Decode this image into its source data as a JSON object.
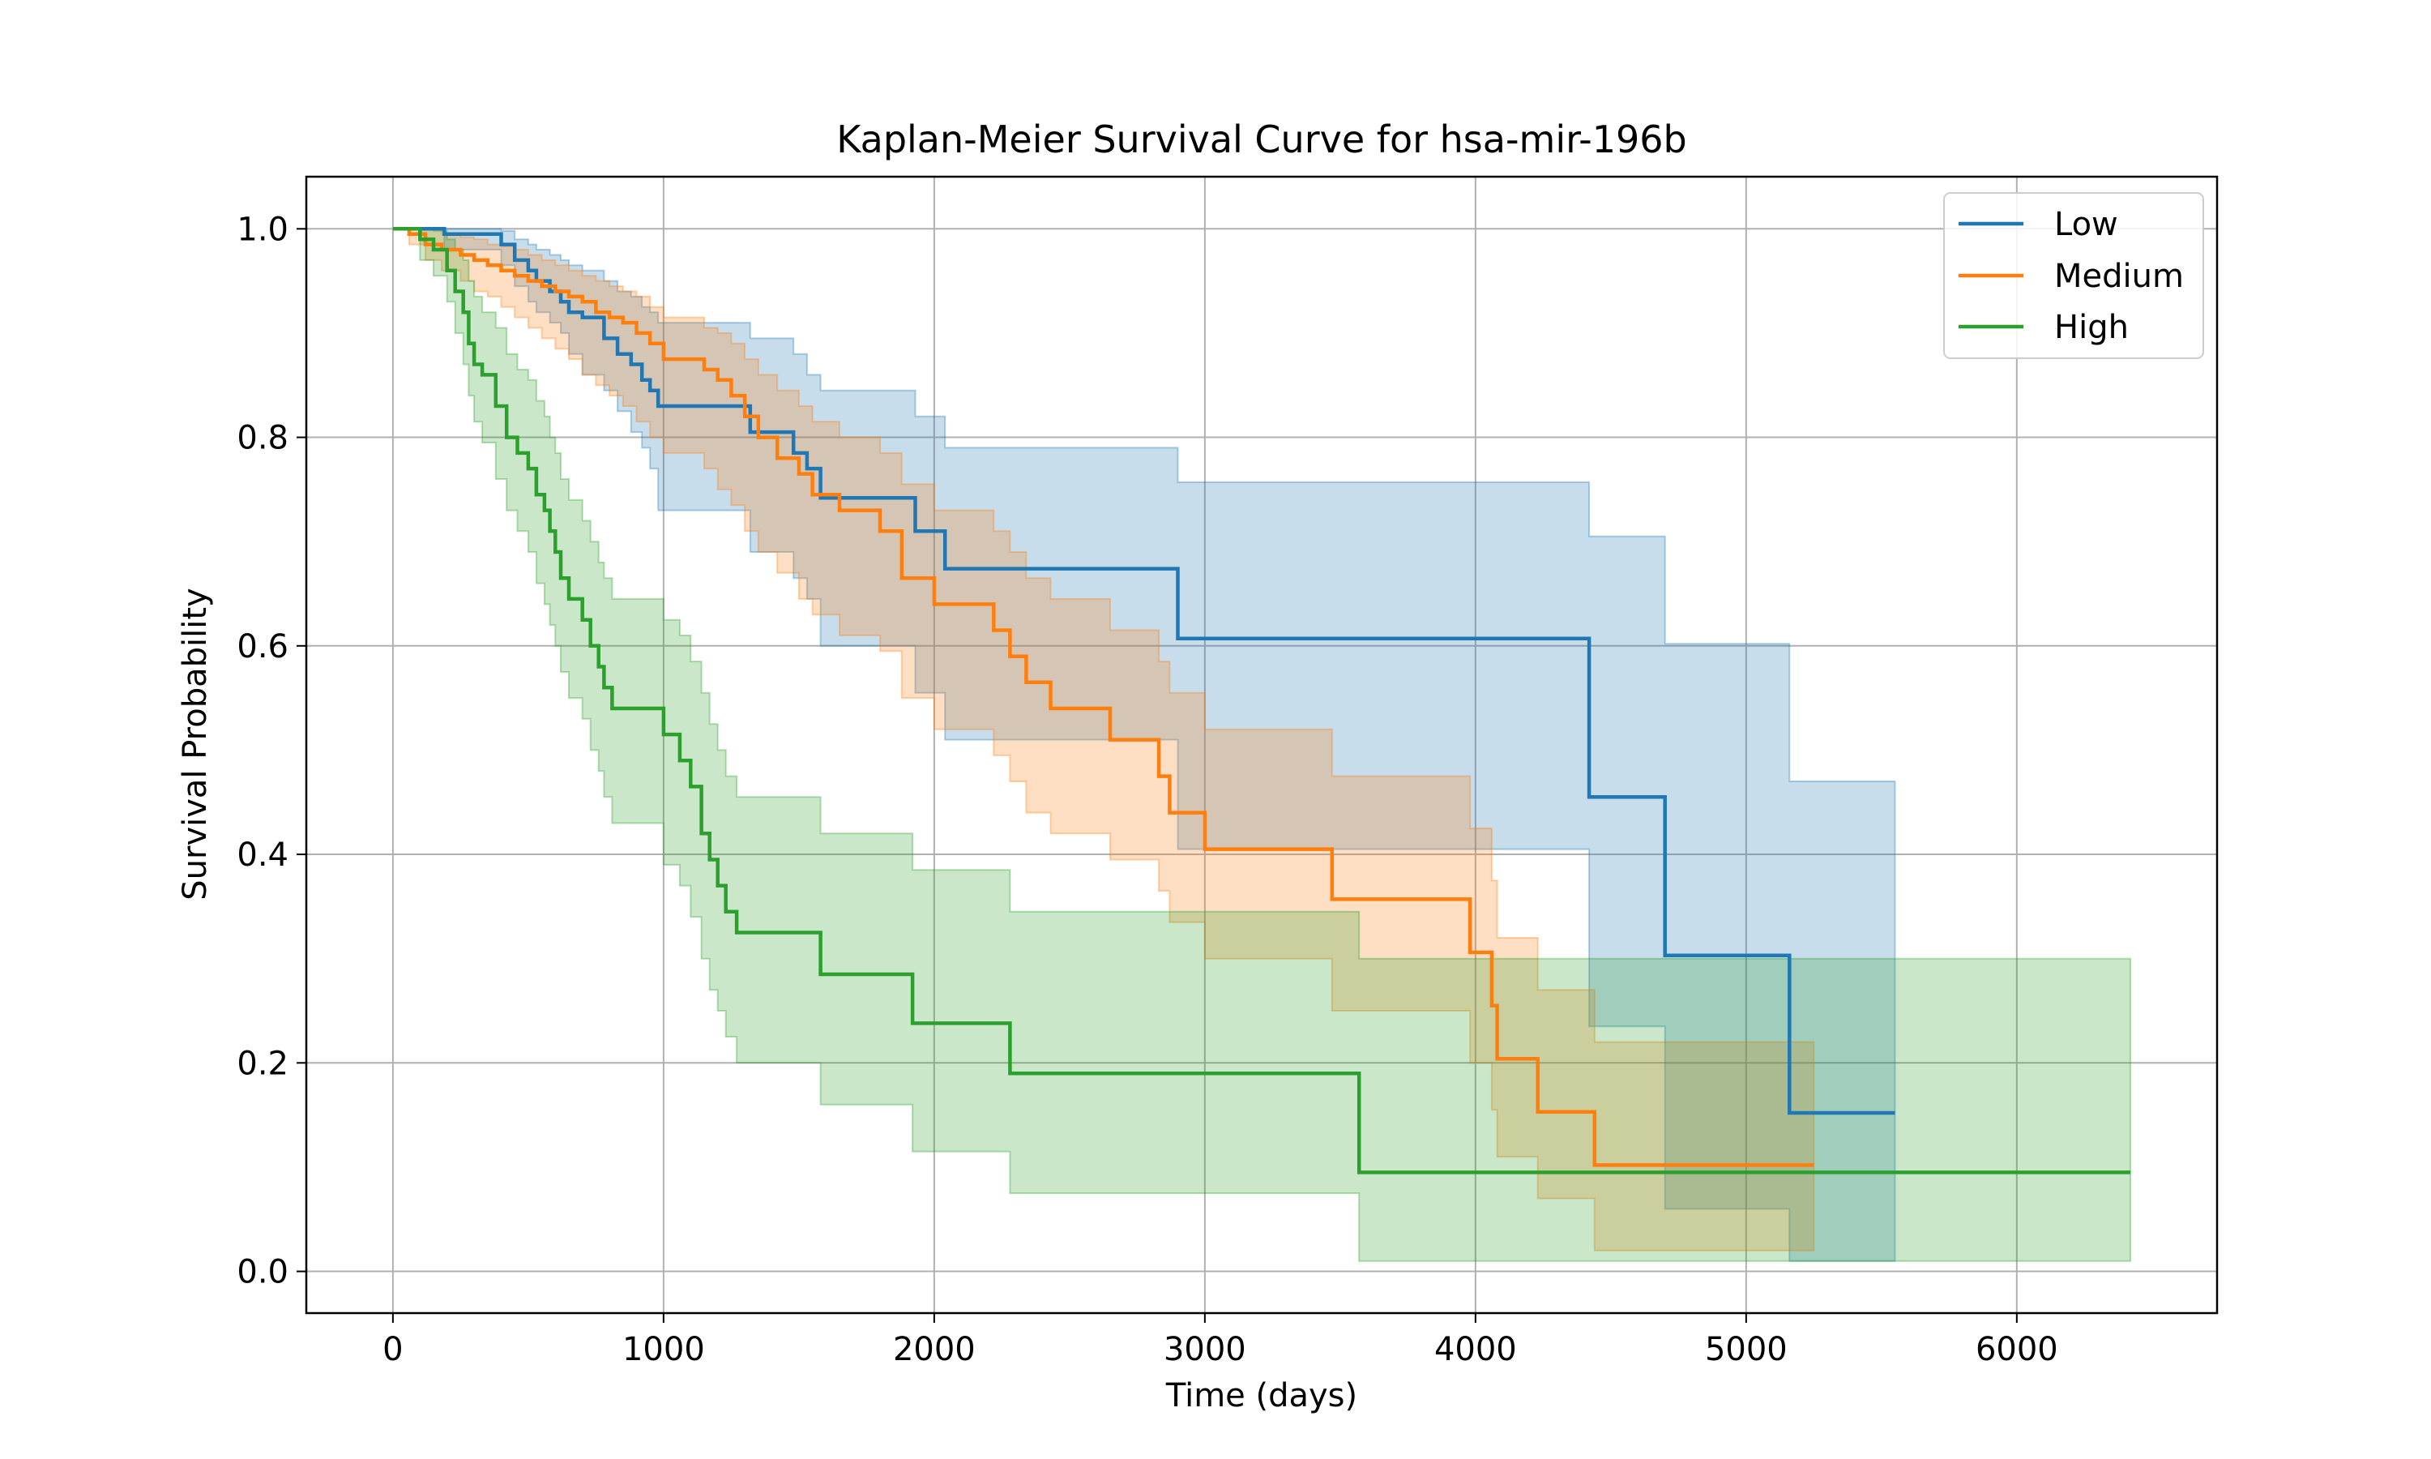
{
  "chart_data": {
    "type": "line",
    "title": "Kaplan-Meier Survival Curve for hsa-mir-196b",
    "xlabel": "Time (days)",
    "ylabel": "Survival Probability",
    "xlim": [
      -320,
      6740
    ],
    "ylim": [
      -0.04,
      1.05
    ],
    "xticks": [
      0,
      1000,
      2000,
      3000,
      4000,
      5000,
      6000
    ],
    "yticks": [
      0.0,
      0.2,
      0.4,
      0.6,
      0.8,
      1.0
    ],
    "xtick_labels": [
      "0",
      "1000",
      "2000",
      "3000",
      "4000",
      "5000",
      "6000"
    ],
    "ytick_labels": [
      "0.0",
      "0.2",
      "0.4",
      "0.6",
      "0.8",
      "1.0"
    ],
    "grid": true,
    "legend_position": "top-right",
    "step": true,
    "confidence_bands": true,
    "series": [
      {
        "name": "Low",
        "color": "#1f77b4",
        "x": [
          0,
          190,
          400,
          450,
          500,
          530,
          580,
          620,
          650,
          700,
          780,
          830,
          880,
          920,
          950,
          980,
          1000,
          1320,
          1480,
          1530,
          1580,
          1930,
          2040,
          2900,
          4420,
          4700,
          5160,
          5550
        ],
        "y": [
          1.0,
          0.995,
          0.985,
          0.97,
          0.96,
          0.95,
          0.94,
          0.93,
          0.92,
          0.915,
          0.895,
          0.88,
          0.87,
          0.855,
          0.845,
          0.83,
          0.83,
          0.805,
          0.785,
          0.77,
          0.742,
          0.71,
          0.674,
          0.607,
          0.455,
          0.303,
          0.152,
          0.152
        ],
        "ci_lower": [
          1.0,
          0.98,
          0.965,
          0.945,
          0.93,
          0.92,
          0.91,
          0.9,
          0.88,
          0.86,
          0.845,
          0.825,
          0.805,
          0.79,
          0.77,
          0.73,
          0.73,
          0.69,
          0.665,
          0.645,
          0.6,
          0.555,
          0.51,
          0.405,
          0.235,
          0.06,
          0.01,
          0.01
        ],
        "ci_upper": [
          1.0,
          1.0,
          0.998,
          0.99,
          0.985,
          0.98,
          0.975,
          0.97,
          0.965,
          0.96,
          0.95,
          0.94,
          0.935,
          0.925,
          0.92,
          0.91,
          0.91,
          0.895,
          0.88,
          0.86,
          0.845,
          0.82,
          0.79,
          0.757,
          0.705,
          0.602,
          0.47,
          0.47
        ]
      },
      {
        "name": "Medium",
        "color": "#ff7f0e",
        "x": [
          0,
          60,
          120,
          180,
          250,
          300,
          350,
          400,
          450,
          500,
          550,
          600,
          650,
          700,
          750,
          800,
          850,
          900,
          950,
          1000,
          1150,
          1200,
          1250,
          1300,
          1350,
          1420,
          1500,
          1550,
          1650,
          1800,
          1880,
          2000,
          2220,
          2280,
          2340,
          2430,
          2650,
          2830,
          2870,
          3000,
          3470,
          3980,
          4060,
          4080,
          4230,
          4440,
          5250
        ],
        "y": [
          1.0,
          0.995,
          0.985,
          0.98,
          0.975,
          0.97,
          0.965,
          0.96,
          0.955,
          0.95,
          0.945,
          0.94,
          0.935,
          0.93,
          0.92,
          0.915,
          0.91,
          0.9,
          0.89,
          0.875,
          0.865,
          0.855,
          0.84,
          0.82,
          0.8,
          0.78,
          0.765,
          0.745,
          0.73,
          0.71,
          0.665,
          0.64,
          0.615,
          0.59,
          0.565,
          0.54,
          0.51,
          0.475,
          0.44,
          0.405,
          0.357,
          0.306,
          0.255,
          0.204,
          0.153,
          0.102,
          0.102
        ],
        "ci_lower": [
          1.0,
          0.985,
          0.97,
          0.96,
          0.95,
          0.94,
          0.935,
          0.925,
          0.915,
          0.905,
          0.895,
          0.885,
          0.875,
          0.86,
          0.85,
          0.84,
          0.83,
          0.815,
          0.8,
          0.785,
          0.77,
          0.75,
          0.735,
          0.71,
          0.69,
          0.67,
          0.645,
          0.63,
          0.61,
          0.595,
          0.55,
          0.52,
          0.495,
          0.47,
          0.44,
          0.42,
          0.395,
          0.365,
          0.335,
          0.3,
          0.25,
          0.2,
          0.155,
          0.11,
          0.07,
          0.02,
          0.02
        ],
        "ci_upper": [
          1.0,
          1.0,
          1.0,
          0.995,
          0.992,
          0.99,
          0.985,
          0.983,
          0.98,
          0.975,
          0.97,
          0.965,
          0.96,
          0.955,
          0.95,
          0.945,
          0.94,
          0.935,
          0.925,
          0.915,
          0.905,
          0.9,
          0.89,
          0.875,
          0.86,
          0.845,
          0.83,
          0.815,
          0.8,
          0.785,
          0.755,
          0.73,
          0.71,
          0.69,
          0.665,
          0.645,
          0.615,
          0.585,
          0.555,
          0.52,
          0.475,
          0.425,
          0.375,
          0.32,
          0.27,
          0.22,
          0.22
        ]
      },
      {
        "name": "High",
        "color": "#2ca02c",
        "x": [
          0,
          100,
          150,
          200,
          230,
          260,
          280,
          300,
          330,
          380,
          420,
          460,
          500,
          530,
          560,
          580,
          600,
          620,
          650,
          700,
          730,
          760,
          780,
          810,
          1000,
          1060,
          1100,
          1140,
          1170,
          1200,
          1230,
          1270,
          1580,
          1920,
          2280,
          3570,
          6420
        ],
        "y": [
          1.0,
          0.99,
          0.98,
          0.96,
          0.94,
          0.92,
          0.89,
          0.87,
          0.86,
          0.83,
          0.8,
          0.785,
          0.77,
          0.745,
          0.73,
          0.71,
          0.69,
          0.665,
          0.645,
          0.625,
          0.6,
          0.58,
          0.56,
          0.54,
          0.515,
          0.49,
          0.465,
          0.42,
          0.395,
          0.37,
          0.345,
          0.325,
          0.285,
          0.238,
          0.19,
          0.095,
          0.095
        ],
        "ci_lower": [
          1.0,
          0.97,
          0.955,
          0.93,
          0.9,
          0.87,
          0.84,
          0.815,
          0.795,
          0.76,
          0.73,
          0.71,
          0.69,
          0.66,
          0.64,
          0.62,
          0.6,
          0.575,
          0.55,
          0.53,
          0.5,
          0.48,
          0.455,
          0.43,
          0.39,
          0.37,
          0.34,
          0.3,
          0.27,
          0.25,
          0.225,
          0.2,
          0.16,
          0.115,
          0.075,
          0.01,
          0.01
        ],
        "ci_upper": [
          1.0,
          1.0,
          0.998,
          0.99,
          0.98,
          0.97,
          0.95,
          0.935,
          0.92,
          0.905,
          0.88,
          0.865,
          0.855,
          0.835,
          0.82,
          0.8,
          0.785,
          0.76,
          0.74,
          0.72,
          0.7,
          0.68,
          0.665,
          0.645,
          0.625,
          0.61,
          0.585,
          0.555,
          0.525,
          0.5,
          0.475,
          0.455,
          0.42,
          0.385,
          0.345,
          0.3,
          0.3
        ]
      }
    ]
  }
}
